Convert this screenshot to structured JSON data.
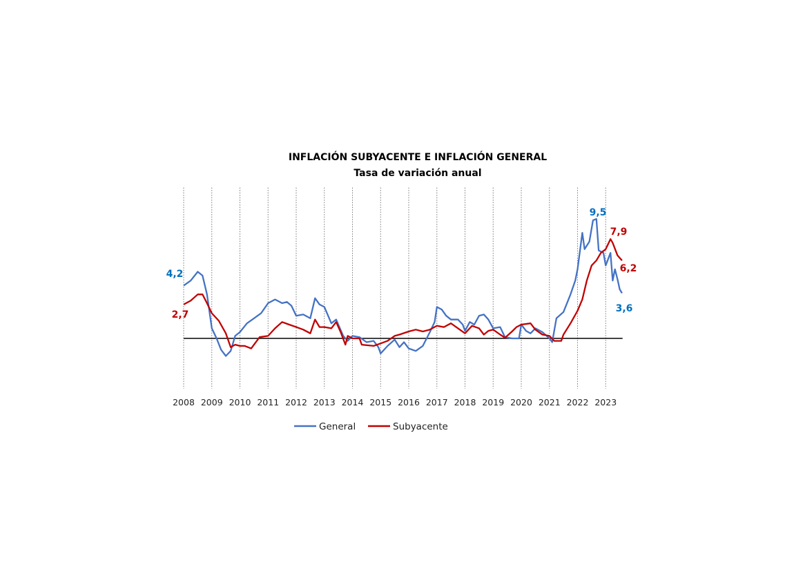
{
  "chart_data": {
    "type": "line",
    "title": "INFLACIÓN SUBYACENTE E INFLACIÓN GENERAL",
    "subtitle": "Tasa de variación anual",
    "xlabel": "",
    "ylabel": "",
    "x_ticks": [
      "2008",
      "2009",
      "2010",
      "2011",
      "2012",
      "2013",
      "2014",
      "2015",
      "2016",
      "2017",
      "2018",
      "2019",
      "2020",
      "2021",
      "2022",
      "2023"
    ],
    "xlim": [
      2008,
      2023.6
    ],
    "ylim": [
      -4,
      12
    ],
    "grid": "vertical dotted lines at each year",
    "zero_line": true,
    "legend_position": "bottom",
    "series": [
      {
        "name": "General",
        "color": "#4472C4",
        "x": [
          2008.0,
          2008.25,
          2008.5,
          2008.67,
          2008.83,
          2009.0,
          2009.17,
          2009.33,
          2009.5,
          2009.67,
          2009.83,
          2010.0,
          2010.25,
          2010.5,
          2010.75,
          2011.0,
          2011.25,
          2011.5,
          2011.67,
          2011.83,
          2012.0,
          2012.25,
          2012.5,
          2012.67,
          2012.83,
          2013.0,
          2013.25,
          2013.42,
          2013.67,
          2013.83,
          2014.0,
          2014.25,
          2014.5,
          2014.75,
          2014.92,
          2015.0,
          2015.25,
          2015.5,
          2015.67,
          2015.83,
          2016.0,
          2016.25,
          2016.5,
          2016.75,
          2016.92,
          2017.0,
          2017.17,
          2017.33,
          2017.5,
          2017.75,
          2017.92,
          2018.0,
          2018.17,
          2018.33,
          2018.5,
          2018.67,
          2018.83,
          2019.0,
          2019.25,
          2019.42,
          2019.67,
          2019.92,
          2020.0,
          2020.17,
          2020.33,
          2020.5,
          2020.75,
          2021.0,
          2021.1,
          2021.25,
          2021.5,
          2021.75,
          2021.92,
          2022.0,
          2022.17,
          2022.25,
          2022.42,
          2022.55,
          2022.67,
          2022.75,
          2022.92,
          2023.0,
          2023.17,
          2023.25,
          2023.33,
          2023.42,
          2023.5,
          2023.58
        ],
        "values": [
          4.2,
          4.6,
          5.3,
          5.0,
          3.5,
          0.8,
          0.0,
          -0.9,
          -1.4,
          -1.0,
          0.2,
          0.5,
          1.2,
          1.6,
          2.0,
          2.8,
          3.1,
          2.8,
          2.9,
          2.6,
          1.8,
          1.9,
          1.6,
          3.2,
          2.7,
          2.5,
          1.2,
          1.5,
          0.2,
          -0.2,
          0.2,
          0.1,
          -0.3,
          -0.2,
          -0.7,
          -1.2,
          -0.6,
          -0.1,
          -0.7,
          -0.3,
          -0.8,
          -1.0,
          -0.6,
          0.5,
          1.3,
          2.5,
          2.3,
          1.8,
          1.5,
          1.5,
          1.1,
          0.6,
          1.3,
          1.1,
          1.8,
          1.9,
          1.5,
          0.8,
          0.9,
          0.1,
          0.0,
          0.0,
          1.1,
          0.6,
          0.4,
          0.8,
          0.5,
          0.0,
          -0.3,
          1.6,
          2.1,
          3.5,
          4.6,
          5.5,
          8.4,
          7.1,
          7.7,
          9.4,
          9.5,
          7.0,
          6.8,
          5.8,
          6.8,
          4.6,
          5.5,
          4.7,
          3.9,
          3.6
        ]
      },
      {
        "name": "Subyacente",
        "color": "#C00000",
        "x": [
          2008.0,
          2008.25,
          2008.5,
          2008.67,
          2008.83,
          2009.0,
          2009.25,
          2009.5,
          2009.67,
          2009.83,
          2010.0,
          2010.17,
          2010.4,
          2010.7,
          2011.0,
          2011.25,
          2011.5,
          2011.75,
          2012.0,
          2012.25,
          2012.5,
          2012.67,
          2012.83,
          2013.0,
          2013.25,
          2013.42,
          2013.58,
          2013.75,
          2013.83,
          2014.0,
          2014.25,
          2014.33,
          2014.75,
          2015.0,
          2015.25,
          2015.5,
          2015.67,
          2016.0,
          2016.25,
          2016.5,
          2016.75,
          2017.0,
          2017.25,
          2017.5,
          2017.75,
          2018.0,
          2018.25,
          2018.5,
          2018.67,
          2018.83,
          2019.0,
          2019.25,
          2019.42,
          2019.67,
          2019.83,
          2020.0,
          2020.33,
          2020.5,
          2020.75,
          2021.0,
          2021.17,
          2021.42,
          2021.5,
          2021.75,
          2022.0,
          2022.17,
          2022.33,
          2022.5,
          2022.67,
          2022.83,
          2023.0,
          2023.17,
          2023.25,
          2023.42,
          2023.58
        ],
        "values": [
          2.7,
          3.0,
          3.5,
          3.5,
          2.8,
          2.0,
          1.4,
          0.4,
          -0.7,
          -0.5,
          -0.6,
          -0.6,
          -0.8,
          0.1,
          0.2,
          0.8,
          1.3,
          1.1,
          0.9,
          0.7,
          0.4,
          1.5,
          0.9,
          0.9,
          0.8,
          1.3,
          0.5,
          -0.5,
          0.2,
          0.0,
          0.0,
          -0.5,
          -0.6,
          -0.4,
          -0.2,
          0.2,
          0.3,
          0.55,
          0.7,
          0.55,
          0.7,
          1.0,
          0.9,
          1.2,
          0.8,
          0.4,
          1.0,
          0.8,
          0.3,
          0.6,
          0.7,
          0.3,
          0.05,
          0.55,
          0.9,
          1.1,
          1.2,
          0.7,
          0.3,
          0.2,
          -0.2,
          -0.2,
          0.3,
          1.2,
          2.2,
          3.1,
          4.6,
          5.8,
          6.2,
          6.8,
          7.1,
          7.9,
          7.6,
          6.6,
          6.2
        ]
      }
    ],
    "annotations": [
      {
        "text": "4,2",
        "series": "General"
      },
      {
        "text": "2,7",
        "series": "Subyacente"
      },
      {
        "text": "9,5",
        "series": "General"
      },
      {
        "text": "7,9",
        "series": "Subyacente"
      },
      {
        "text": "6,2",
        "series": "Subyacente"
      },
      {
        "text": "3,6",
        "series": "General"
      }
    ],
    "label_colors": {
      "General": "#0070C0",
      "Subyacente": "#C00000"
    }
  }
}
